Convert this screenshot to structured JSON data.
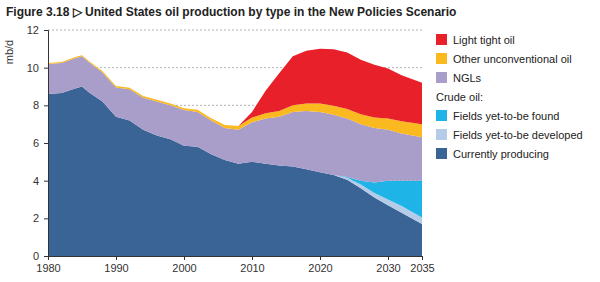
{
  "chart_data": {
    "type": "area",
    "title": "Figure 3.18 ▷ United States oil production by type in the New Policies Scenario",
    "y_label": "mb/d",
    "annotations": [
      "Crude oil:"
    ],
    "stacked": true,
    "grid": true,
    "legend": "right",
    "x": [
      1980,
      1982,
      1984,
      1985,
      1986,
      1988,
      1990,
      1992,
      1994,
      1996,
      1998,
      2000,
      2002,
      2004,
      2006,
      2008,
      2010,
      2012,
      2014,
      2016,
      2018,
      2020,
      2022,
      2024,
      2026,
      2028,
      2030,
      2032,
      2035
    ],
    "xlim": [
      1980,
      2035
    ],
    "xticks": [
      1980,
      1990,
      2000,
      2010,
      2020,
      2030,
      2035
    ],
    "ylim": [
      0,
      12
    ],
    "yticks": [
      0,
      2,
      4,
      6,
      8,
      10,
      12
    ],
    "series": [
      {
        "name": "Currently producing",
        "color": "#3b6496",
        "values": [
          8.6,
          8.65,
          8.9,
          9.0,
          8.7,
          8.2,
          7.4,
          7.2,
          6.7,
          6.4,
          6.2,
          5.85,
          5.8,
          5.4,
          5.1,
          4.9,
          5.0,
          4.9,
          4.8,
          4.75,
          4.6,
          4.45,
          4.3,
          4.05,
          3.6,
          3.1,
          2.7,
          2.3,
          1.7
        ]
      },
      {
        "name": "Fields yet-to-be developed",
        "color": "#b5cce8",
        "values": [
          0,
          0,
          0,
          0,
          0,
          0,
          0,
          0,
          0,
          0,
          0,
          0,
          0,
          0,
          0,
          0,
          0,
          0,
          0,
          0,
          0,
          0,
          0,
          0.1,
          0.2,
          0.25,
          0.3,
          0.35,
          0.35
        ]
      },
      {
        "name": "Fields yet-to-be found",
        "color": "#1fb4e8",
        "values": [
          0,
          0,
          0,
          0,
          0,
          0,
          0,
          0,
          0,
          0,
          0,
          0,
          0,
          0,
          0,
          0,
          0,
          0,
          0,
          0,
          0,
          0,
          0,
          0.05,
          0.2,
          0.55,
          1.0,
          1.35,
          1.95
        ]
      },
      {
        "name": "NGLs",
        "color": "#a99dc9",
        "values": [
          1.6,
          1.6,
          1.6,
          1.6,
          1.6,
          1.55,
          1.55,
          1.65,
          1.7,
          1.8,
          1.8,
          1.9,
          1.85,
          1.8,
          1.7,
          1.8,
          2.1,
          2.4,
          2.6,
          2.9,
          3.1,
          3.2,
          3.2,
          3.1,
          3.0,
          2.9,
          2.7,
          2.5,
          2.3
        ]
      },
      {
        "name": "Other unconventional oil",
        "color": "#fbb920",
        "values": [
          0.05,
          0.05,
          0.06,
          0.06,
          0.06,
          0.07,
          0.08,
          0.08,
          0.09,
          0.09,
          0.1,
          0.1,
          0.11,
          0.12,
          0.15,
          0.2,
          0.25,
          0.28,
          0.3,
          0.35,
          0.4,
          0.45,
          0.48,
          0.5,
          0.52,
          0.55,
          0.6,
          0.65,
          0.7
        ]
      },
      {
        "name": "Light tight oil",
        "color": "#e8202a",
        "values": [
          0,
          0,
          0,
          0,
          0,
          0,
          0,
          0,
          0,
          0,
          0,
          0,
          0,
          0,
          0,
          0,
          0.3,
          1.2,
          2.0,
          2.6,
          2.8,
          2.9,
          3.0,
          3.0,
          2.9,
          2.8,
          2.65,
          2.45,
          2.2
        ]
      }
    ]
  }
}
